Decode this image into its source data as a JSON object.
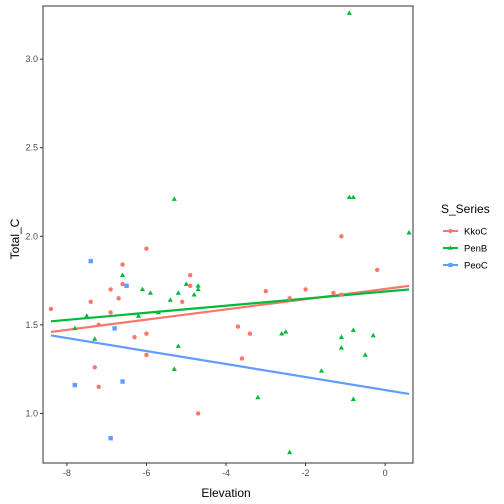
{
  "chart_data": {
    "type": "scatter",
    "title": "",
    "xlabel": "Elevation",
    "ylabel": "Total_C",
    "xlim": [
      -8.6,
      0.7
    ],
    "ylim": [
      0.72,
      3.3
    ],
    "x_ticks": [
      -8,
      -6,
      -4,
      -2,
      0
    ],
    "x_tick_labels": [
      "-8",
      "-6",
      "-4",
      "-2",
      "0"
    ],
    "y_ticks": [
      1.0,
      1.5,
      2.0,
      2.5,
      3.0
    ],
    "y_tick_labels": [
      "1.0",
      "1.5",
      "2.0",
      "2.5",
      "3.0"
    ],
    "grid": false,
    "legend": {
      "title": "S_Series",
      "position": "right",
      "entries": [
        "KkoC",
        "PenB",
        "PeoC"
      ]
    },
    "series": [
      {
        "name": "KkoC",
        "color": "#F8766D",
        "marker": "circle",
        "points": [
          [
            -8.4,
            1.59
          ],
          [
            -7.4,
            1.63
          ],
          [
            -7.3,
            1.26
          ],
          [
            -7.2,
            1.15
          ],
          [
            -7.2,
            1.5
          ],
          [
            -6.9,
            1.57
          ],
          [
            -6.9,
            1.7
          ],
          [
            -6.7,
            1.65
          ],
          [
            -6.6,
            1.73
          ],
          [
            -6.6,
            1.84
          ],
          [
            -6.3,
            1.43
          ],
          [
            -6.0,
            1.93
          ],
          [
            -6.0,
            1.33
          ],
          [
            -6.0,
            1.45
          ],
          [
            -5.1,
            1.63
          ],
          [
            -4.9,
            1.78
          ],
          [
            -4.9,
            1.72
          ],
          [
            -4.7,
            1.0
          ],
          [
            -3.7,
            1.49
          ],
          [
            -3.6,
            1.31
          ],
          [
            -3.4,
            1.45
          ],
          [
            -3.0,
            1.69
          ],
          [
            -2.4,
            1.65
          ],
          [
            -2.0,
            1.7
          ],
          [
            -1.3,
            1.68
          ],
          [
            -1.1,
            2.0
          ],
          [
            -1.1,
            1.67
          ],
          [
            -0.2,
            1.81
          ]
        ],
        "fit": [
          [
            -8.4,
            1.46
          ],
          [
            0.6,
            1.72
          ]
        ]
      },
      {
        "name": "PenB",
        "color": "#00BA38",
        "marker": "triangle",
        "points": [
          [
            -7.8,
            1.48
          ],
          [
            -7.5,
            1.55
          ],
          [
            -7.3,
            1.42
          ],
          [
            -6.6,
            1.78
          ],
          [
            -6.2,
            1.55
          ],
          [
            -6.1,
            1.7
          ],
          [
            -5.9,
            1.68
          ],
          [
            -5.7,
            1.57
          ],
          [
            -5.4,
            1.64
          ],
          [
            -5.3,
            2.21
          ],
          [
            -5.3,
            1.25
          ],
          [
            -5.2,
            1.68
          ],
          [
            -5.2,
            1.38
          ],
          [
            -5.0,
            1.73
          ],
          [
            -4.8,
            1.67
          ],
          [
            -4.7,
            1.7
          ],
          [
            -4.7,
            1.72
          ],
          [
            -3.2,
            1.09
          ],
          [
            -2.6,
            1.45
          ],
          [
            -2.5,
            1.46
          ],
          [
            -2.4,
            0.78
          ],
          [
            -1.6,
            1.24
          ],
          [
            -1.1,
            1.43
          ],
          [
            -1.1,
            1.37
          ],
          [
            -0.9,
            3.26
          ],
          [
            -0.9,
            2.22
          ],
          [
            -0.8,
            2.22
          ],
          [
            -0.8,
            1.08
          ],
          [
            -0.8,
            1.47
          ],
          [
            -0.5,
            1.33
          ],
          [
            -0.3,
            1.44
          ],
          [
            0.6,
            2.02
          ]
        ],
        "fit": [
          [
            -8.4,
            1.52
          ],
          [
            0.6,
            1.7
          ]
        ]
      },
      {
        "name": "PeoC",
        "color": "#619CFF",
        "marker": "square",
        "points": [
          [
            -7.8,
            1.16
          ],
          [
            -7.4,
            1.86
          ],
          [
            -6.9,
            0.86
          ],
          [
            -6.8,
            1.48
          ],
          [
            -6.6,
            1.18
          ],
          [
            -6.5,
            1.72
          ]
        ],
        "fit": [
          [
            -8.4,
            1.44
          ],
          [
            0.6,
            1.11
          ]
        ]
      }
    ]
  }
}
